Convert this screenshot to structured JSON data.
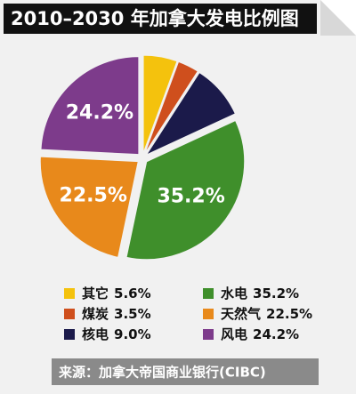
{
  "chart_data": {
    "type": "pie",
    "title": "2010–2030 年加拿大发电比例图",
    "categories": [
      "其它",
      "煤炭",
      "核电",
      "水电",
      "天然气",
      "风电"
    ],
    "values": [
      5.6,
      3.5,
      9.0,
      35.2,
      22.5,
      24.2
    ],
    "value_labels": [
      "5.6%",
      "3.5%",
      "9.0%",
      "35.2%",
      "22.5%",
      "24.2%"
    ],
    "colors": [
      "#f4c20d",
      "#cf4f1d",
      "#1b1a4a",
      "#3f8f2b",
      "#e8891b",
      "#7d3b8b"
    ],
    "source": "来源：加拿大帝国商业银行(CIBC)"
  }
}
